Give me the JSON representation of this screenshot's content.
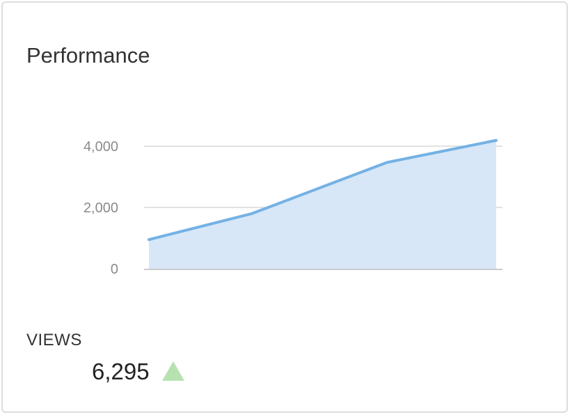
{
  "card": {
    "title": "Performance"
  },
  "chart_data": {
    "type": "area",
    "title": "",
    "xlabel": "",
    "ylabel": "",
    "x": [
      0,
      1,
      2,
      3
    ],
    "series": [
      {
        "values": [
          950,
          1800,
          3470,
          4190
        ]
      }
    ],
    "ylim": [
      0,
      4000
    ],
    "yticks": [
      0,
      2000,
      4000
    ],
    "ytick_labels": [
      "0",
      "2,000",
      "4,000"
    ],
    "grid": true,
    "colors": {
      "line": "#74b1e4",
      "fill": "#d7e7f7",
      "grid": "#e2e2e2",
      "baseline": "#cccccc"
    }
  },
  "metric": {
    "label": "VIEWS",
    "value": "6,295",
    "trend": "up",
    "trend_icon": "triangle-up-icon",
    "trend_color": "#b6e2b0"
  }
}
